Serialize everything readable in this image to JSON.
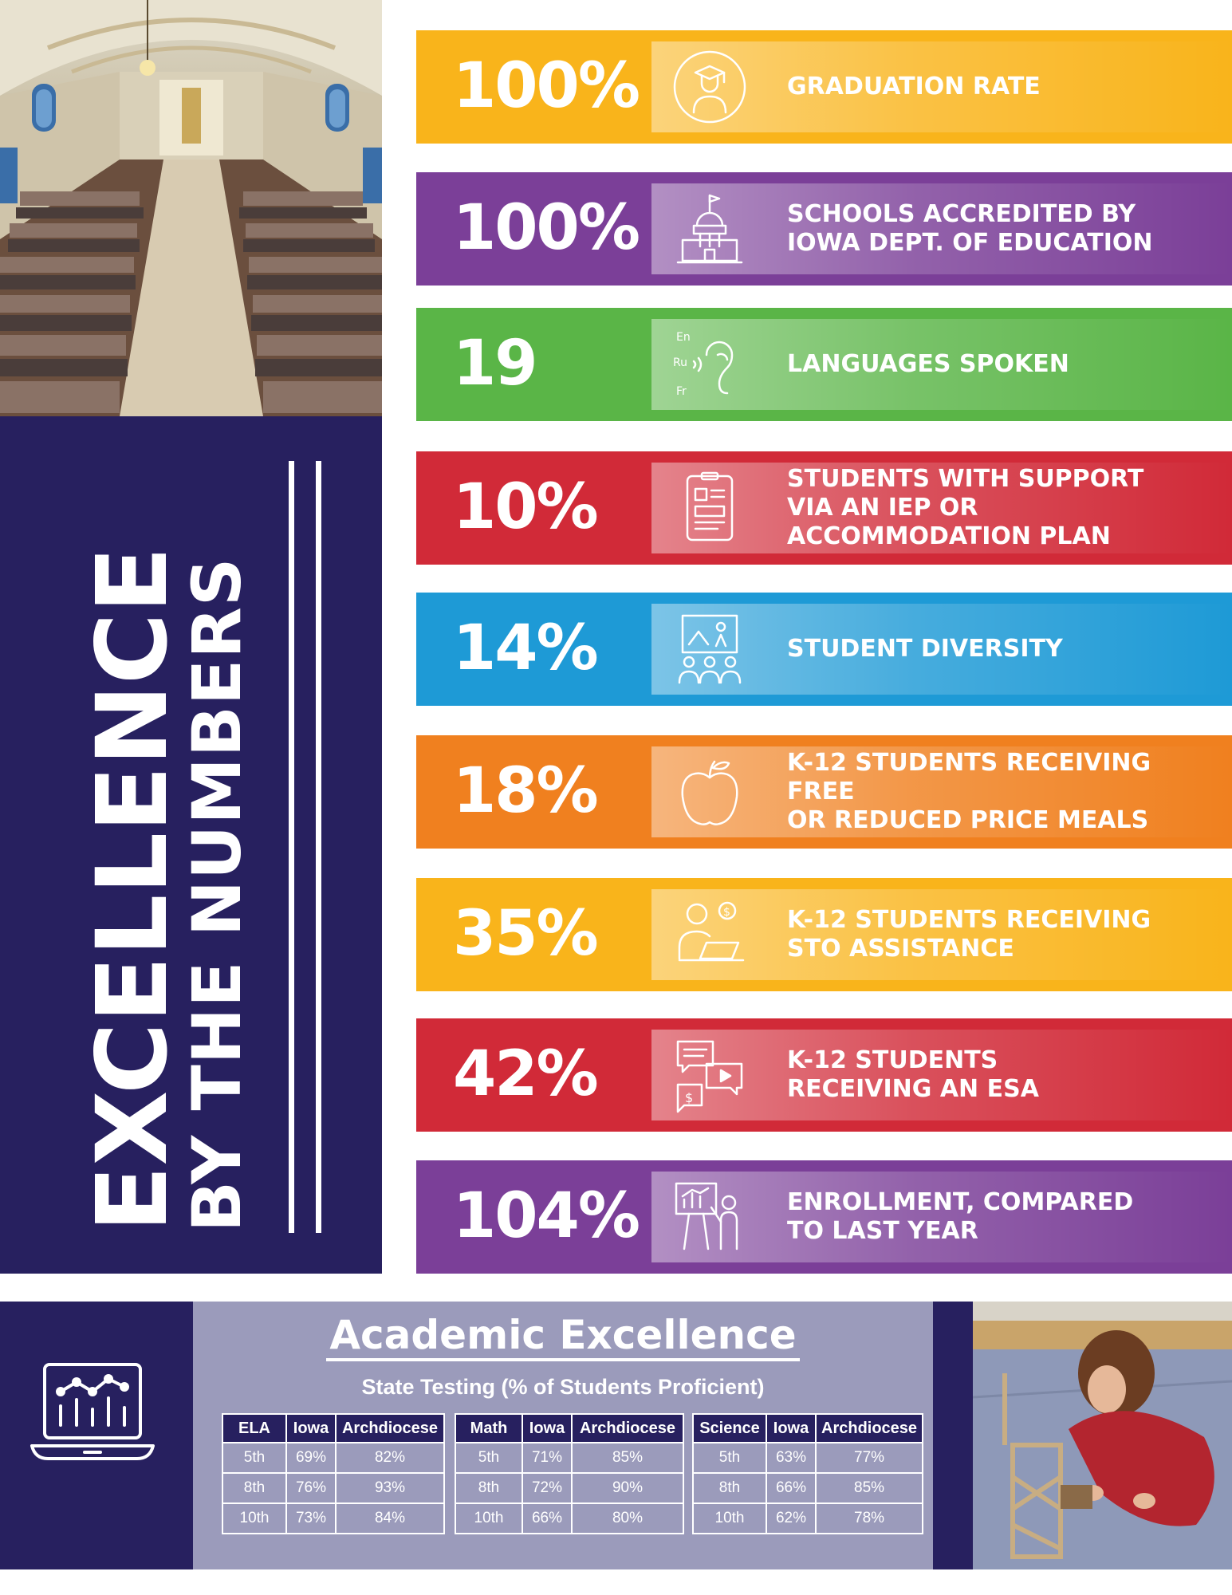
{
  "title": {
    "line1": "EXCELLENCE",
    "line2": "BY THE NUMBERS"
  },
  "colors": {
    "navy": "#27205f",
    "yellow": "#f9b41b",
    "purple": "#7b3f98",
    "green": "#5ab547",
    "red": "#d12a38",
    "blue": "#1e9ad6",
    "orange": "#f0801f",
    "lavender": "#9b9bbb"
  },
  "stats": [
    {
      "value": "100%",
      "label": "Graduation Rate",
      "icon": "graduate-icon",
      "color": "#f9b41b"
    },
    {
      "value": "100%",
      "label": "Schools accredited by\nIowa Dept. of Education",
      "icon": "capitol-building-icon",
      "color": "#7b3f98"
    },
    {
      "value": "19",
      "label": "Languages Spoken",
      "icon": "ear-languages-icon",
      "color": "#5ab547"
    },
    {
      "value": "10%",
      "label": "Students with support\nvia an IEP or\naccommodation plan",
      "icon": "clipboard-icon",
      "color": "#d12a38"
    },
    {
      "value": "14%",
      "label": "Student Diversity",
      "icon": "classroom-icon",
      "color": "#1e9ad6"
    },
    {
      "value": "18%",
      "label": "K-12 students receiving free\nor reduced price meals",
      "icon": "apple-icon",
      "color": "#f0801f"
    },
    {
      "value": "35%",
      "label": "K-12 students receiving\nSTO assistance",
      "icon": "student-laptop-dollar-icon",
      "color": "#f9b41b"
    },
    {
      "value": "42%",
      "label": "K-12 students\nreceiving an ESA",
      "icon": "chat-video-dollar-icon",
      "color": "#d12a38"
    },
    {
      "value": "104%",
      "label": "Enrollment, compared\nto last year",
      "icon": "teacher-chart-icon",
      "color": "#7b3f98"
    }
  ],
  "academic": {
    "title": "Academic Excellence",
    "subtitle": "State Testing (% of Students Proficient)",
    "tables": [
      {
        "headers": [
          "ELA",
          "Iowa",
          "Archdiocese"
        ],
        "rows": [
          [
            "5th",
            "69%",
            "82%"
          ],
          [
            "8th",
            "76%",
            "93%"
          ],
          [
            "10th",
            "73%",
            "84%"
          ]
        ]
      },
      {
        "headers": [
          "Math",
          "Iowa",
          "Archdiocese"
        ],
        "rows": [
          [
            "5th",
            "71%",
            "85%"
          ],
          [
            "8th",
            "72%",
            "90%"
          ],
          [
            "10th",
            "66%",
            "80%"
          ]
        ]
      },
      {
        "headers": [
          "Science",
          "Iowa",
          "Archdiocese"
        ],
        "rows": [
          [
            "5th",
            "63%",
            "77%"
          ],
          [
            "8th",
            "66%",
            "85%"
          ],
          [
            "10th",
            "62%",
            "78%"
          ]
        ]
      }
    ]
  }
}
